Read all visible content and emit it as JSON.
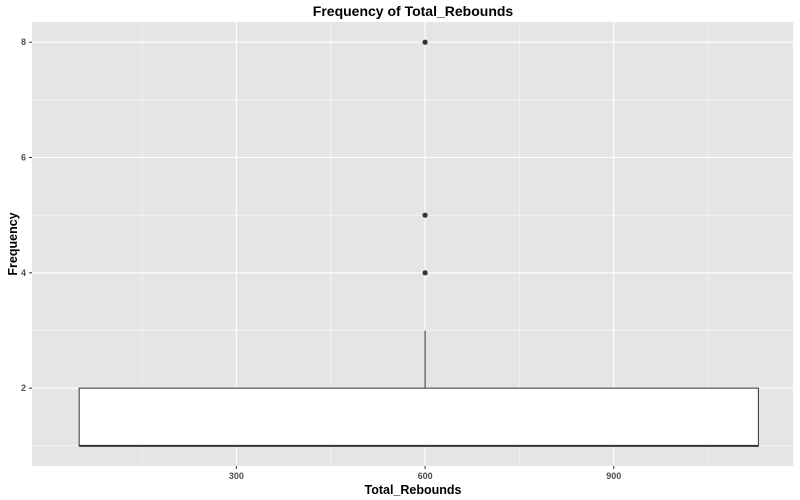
{
  "chart_data": {
    "type": "boxplot",
    "title": "Frequency of Total_Rebounds",
    "xlabel": "Total_Rebounds",
    "ylabel": "Frequency",
    "x_ticks": [
      300,
      600,
      900
    ],
    "y_ticks": [
      2,
      4,
      6,
      8
    ],
    "xlim": [
      -25,
      1185
    ],
    "ylim": [
      0.65,
      8.35
    ],
    "grid": true,
    "box": {
      "x_center": 600,
      "x_min": 50,
      "x_max": 1130,
      "lower": 1,
      "q1": 1,
      "median": 1,
      "q3": 2,
      "upper": 3,
      "outliers": [
        4,
        5,
        8
      ]
    }
  },
  "colors": {
    "panel_background": "#e5e5e5",
    "grid_major": "#ffffff",
    "box_fill": "#ffffff",
    "box_stroke": "#333333",
    "outlier": "#333333"
  }
}
